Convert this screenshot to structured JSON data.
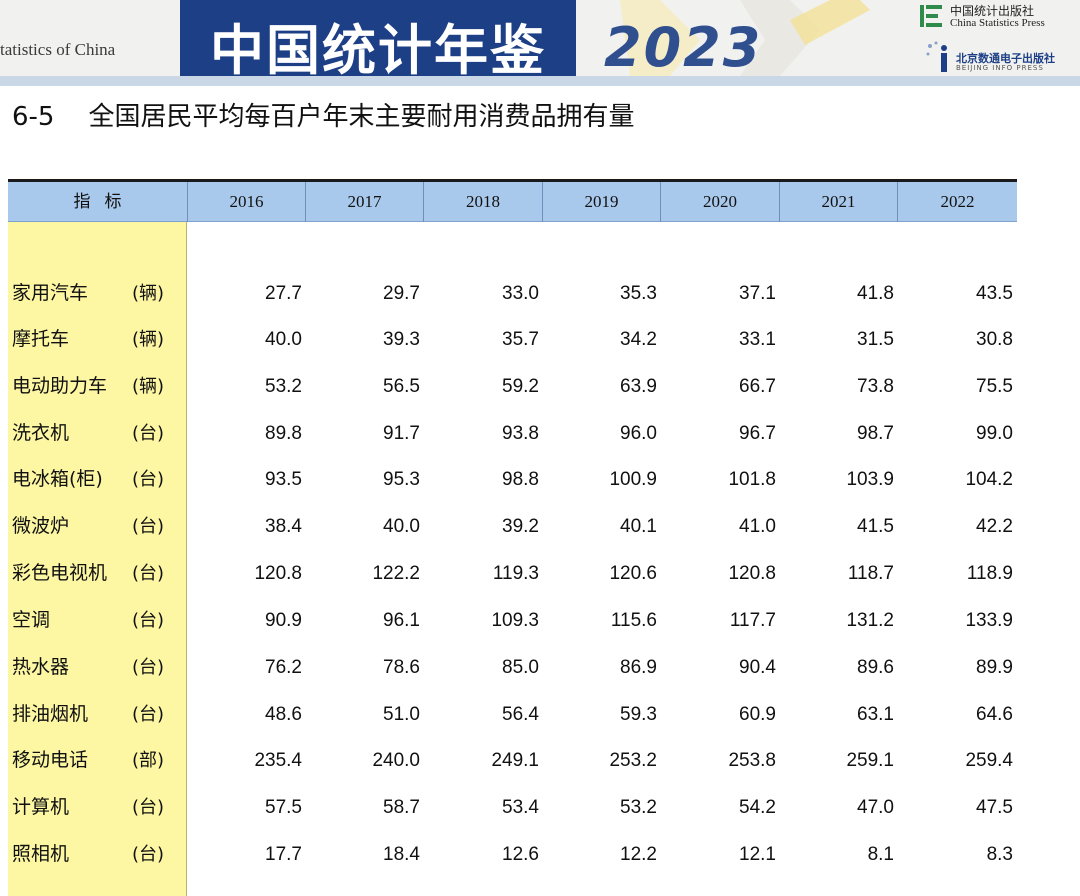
{
  "banner": {
    "left_text": "tatistics of China",
    "title": "中国统计年鉴",
    "year": "2023",
    "publisher_cn": "中国统计出版社",
    "publisher_en": "China Statistics Press",
    "publisher2_cn": "北京数通电子出版社",
    "publisher2_en": "BEIJING INFO PRESS",
    "colors": {
      "title_bg": "#1d3f86",
      "header_bg": "#a9c9ec",
      "label_band": "#fdf7a3"
    }
  },
  "table": {
    "number": "6-5",
    "title": "全国居民平均每百户年末主要耐用消费品拥有量",
    "header_label": "指标",
    "years": [
      "2016",
      "2017",
      "2018",
      "2019",
      "2020",
      "2021",
      "2022"
    ],
    "rows": [
      {
        "name": "家用汽车",
        "unit": "(辆)",
        "values": [
          "27.7",
          "29.7",
          "33.0",
          "35.3",
          "37.1",
          "41.8",
          "43.5"
        ]
      },
      {
        "name": "摩托车",
        "unit": "(辆)",
        "values": [
          "40.0",
          "39.3",
          "35.7",
          "34.2",
          "33.1",
          "31.5",
          "30.8"
        ]
      },
      {
        "name": "电动助力车",
        "unit": "(辆)",
        "values": [
          "53.2",
          "56.5",
          "59.2",
          "63.9",
          "66.7",
          "73.8",
          "75.5"
        ]
      },
      {
        "name": "洗衣机",
        "unit": "(台)",
        "values": [
          "89.8",
          "91.7",
          "93.8",
          "96.0",
          "96.7",
          "98.7",
          "99.0"
        ]
      },
      {
        "name": "电冰箱(柜)",
        "unit": "(台)",
        "values": [
          "93.5",
          "95.3",
          "98.8",
          "100.9",
          "101.8",
          "103.9",
          "104.2"
        ]
      },
      {
        "name": "微波炉",
        "unit": "(台)",
        "values": [
          "38.4",
          "40.0",
          "39.2",
          "40.1",
          "41.0",
          "41.5",
          "42.2"
        ]
      },
      {
        "name": "彩色电视机",
        "unit": "(台)",
        "values": [
          "120.8",
          "122.2",
          "119.3",
          "120.6",
          "120.8",
          "118.7",
          "118.9"
        ]
      },
      {
        "name": "空调",
        "unit": "(台)",
        "values": [
          "90.9",
          "96.1",
          "109.3",
          "115.6",
          "117.7",
          "131.2",
          "133.9"
        ]
      },
      {
        "name": "热水器",
        "unit": "(台)",
        "values": [
          "76.2",
          "78.6",
          "85.0",
          "86.9",
          "90.4",
          "89.6",
          "89.9"
        ]
      },
      {
        "name": "排油烟机",
        "unit": "(台)",
        "values": [
          "48.6",
          "51.0",
          "56.4",
          "59.3",
          "60.9",
          "63.1",
          "64.6"
        ]
      },
      {
        "name": "移动电话",
        "unit": "(部)",
        "values": [
          "235.4",
          "240.0",
          "249.1",
          "253.2",
          "253.8",
          "259.1",
          "259.4"
        ]
      },
      {
        "name": "计算机",
        "unit": "(台)",
        "values": [
          "57.5",
          "58.7",
          "53.4",
          "53.2",
          "54.2",
          "47.0",
          "47.5"
        ]
      },
      {
        "name": "照相机",
        "unit": "(台)",
        "values": [
          "17.7",
          "18.4",
          "12.6",
          "12.2",
          "12.1",
          "8.1",
          "8.3"
        ]
      }
    ]
  }
}
